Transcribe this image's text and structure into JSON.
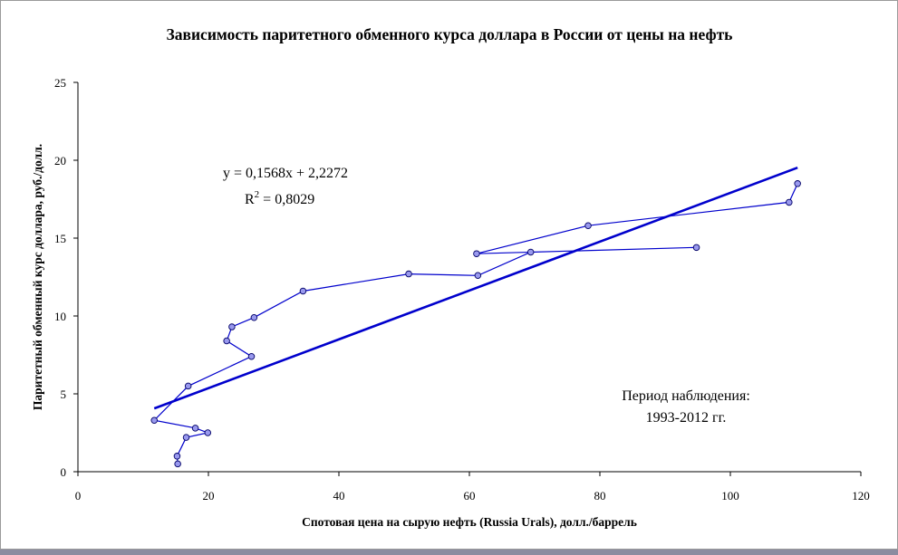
{
  "chart_data": {
    "type": "scatter",
    "title": "Зависимость паритетного обменного курса доллара в России от цены на нефть",
    "xlabel": "Спотовая цена на сырую нефть (Russia Urals), долл./баррель",
    "ylabel": "Паритетный обменный курс доллара, руб./долл.",
    "xlim": [
      0,
      120
    ],
    "ylim": [
      0,
      25
    ],
    "x_ticks": [
      "0",
      "20",
      "40",
      "60",
      "80",
      "100",
      "120"
    ],
    "y_ticks": [
      "0",
      "5",
      "10",
      "15",
      "20",
      "25"
    ],
    "grid": false,
    "series": [
      {
        "type": "line-markers",
        "color": "#0000cc",
        "marker_fill": "#9999ee",
        "points": [
          {
            "x": 15.3,
            "y": 0.5
          },
          {
            "x": 15.2,
            "y": 1.0
          },
          {
            "x": 16.6,
            "y": 2.2
          },
          {
            "x": 19.9,
            "y": 2.5
          },
          {
            "x": 18.0,
            "y": 2.8
          },
          {
            "x": 11.7,
            "y": 3.3
          },
          {
            "x": 16.9,
            "y": 5.5
          },
          {
            "x": 26.6,
            "y": 7.4
          },
          {
            "x": 22.8,
            "y": 8.4
          },
          {
            "x": 23.6,
            "y": 9.3
          },
          {
            "x": 27.0,
            "y": 9.9
          },
          {
            "x": 34.5,
            "y": 11.6
          },
          {
            "x": 50.7,
            "y": 12.7
          },
          {
            "x": 61.3,
            "y": 12.6
          },
          {
            "x": 69.4,
            "y": 14.1
          },
          {
            "x": 94.8,
            "y": 14.4
          },
          {
            "x": 61.1,
            "y": 14.0
          },
          {
            "x": 78.2,
            "y": 15.8
          },
          {
            "x": 109.0,
            "y": 17.3
          },
          {
            "x": 110.3,
            "y": 18.5
          }
        ]
      },
      {
        "type": "trendline",
        "color": "#0000cc",
        "x": [
          11.7,
          110.3
        ],
        "slope": 0.1568,
        "intercept": 2.2272
      }
    ],
    "annotations": {
      "equation": "y = 0,1568x + 2,2272",
      "r2_label": "R",
      "r2_superscript": "2",
      "r2_value": " = 0,8029",
      "period_line1": "Период наблюдения:",
      "period_line2": "1993-2012 гг."
    }
  }
}
